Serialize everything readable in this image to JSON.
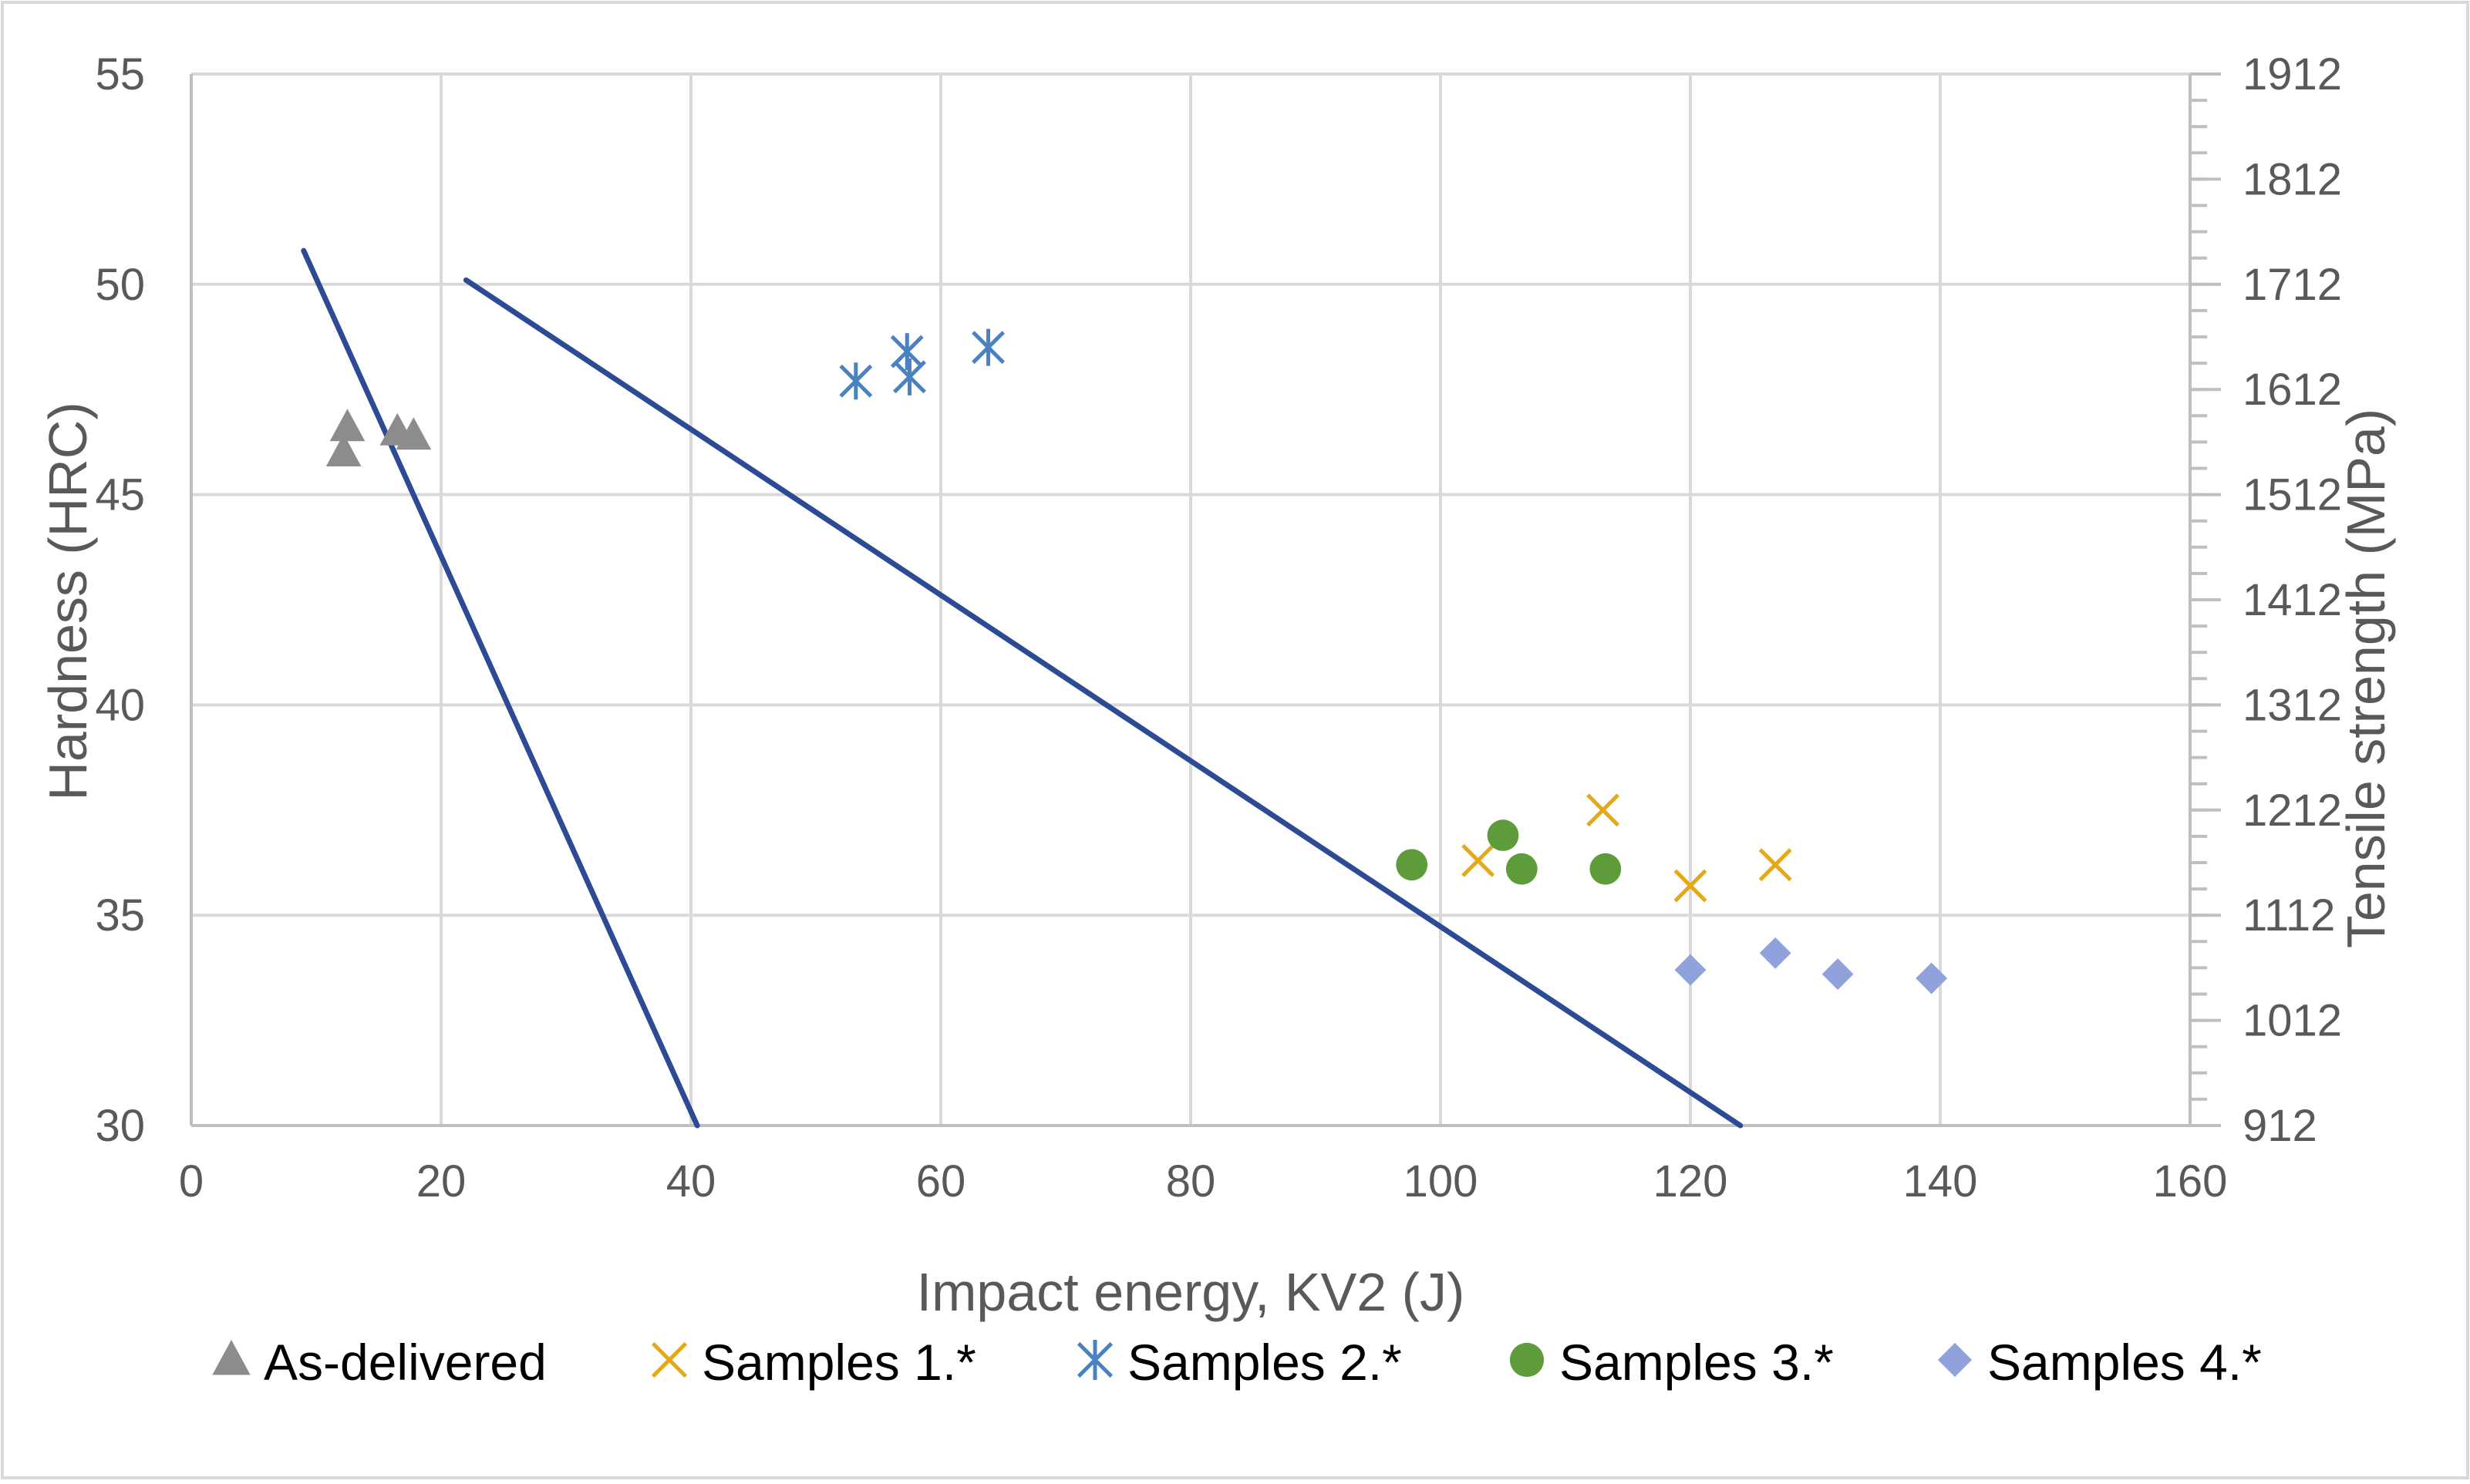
{
  "chart_data": {
    "type": "scatter",
    "title": "",
    "xlabel": "Impact energy, KV2 (J)",
    "ylabel": "Hardness (HRC)",
    "y2label": "Tensile strength (MPa)",
    "xlim": [
      0,
      160
    ],
    "ylim": [
      30,
      55
    ],
    "y2lim": [
      912,
      1912
    ],
    "x_ticks": [
      0,
      20,
      40,
      60,
      80,
      100,
      120,
      140,
      160
    ],
    "x_tick_labels": [
      "0",
      "20",
      "40",
      "60",
      "80",
      "100",
      "120",
      "140",
      "160"
    ],
    "y_ticks": [
      30,
      35,
      40,
      45,
      50,
      55
    ],
    "y_tick_labels": [
      "30",
      "35",
      "40",
      "45",
      "50",
      "55"
    ],
    "y2_ticks": [
      912,
      1012,
      1112,
      1212,
      1312,
      1412,
      1512,
      1612,
      1712,
      1812,
      1912
    ],
    "y2_tick_labels": [
      "912",
      "1012",
      "1112",
      "1212",
      "1312",
      "1412",
      "1512",
      "1612",
      "1712",
      "1812",
      "1912"
    ],
    "grid": true,
    "legend_position": "bottom",
    "series": [
      {
        "name": "As-delivered",
        "marker": "triangle",
        "color": "#8c8c8c",
        "points": [
          [
            12.2,
            46.0
          ],
          [
            12.5,
            46.6
          ],
          [
            16.5,
            46.5
          ],
          [
            17.8,
            46.4
          ]
        ]
      },
      {
        "name": "Samples 1.*",
        "marker": "x",
        "color": "#e6a817",
        "points": [
          [
            103.0,
            36.3
          ],
          [
            113.0,
            37.5
          ],
          [
            120.0,
            35.7
          ],
          [
            126.8,
            36.2
          ]
        ]
      },
      {
        "name": "Samples 2.*",
        "marker": "star",
        "color": "#4a82c0",
        "points": [
          [
            53.2,
            47.7
          ],
          [
            57.3,
            48.4
          ],
          [
            57.5,
            47.8
          ],
          [
            63.8,
            48.5
          ]
        ]
      },
      {
        "name": "Samples 3.*",
        "marker": "circle",
        "color": "#5e9b3a",
        "points": [
          [
            97.7,
            36.2
          ],
          [
            105.0,
            36.9
          ],
          [
            106.5,
            36.1
          ],
          [
            113.2,
            36.1
          ]
        ]
      },
      {
        "name": "Samples 4.*",
        "marker": "diamond",
        "color": "#8fa2dc",
        "points": [
          [
            120.0,
            33.7
          ],
          [
            126.8,
            34.1
          ],
          [
            131.8,
            33.6
          ],
          [
            139.3,
            33.5
          ]
        ]
      }
    ],
    "lines": [
      {
        "name": "boundary-line-1",
        "color": "#2d4b95",
        "points": [
          [
            9.0,
            50.8
          ],
          [
            40.5,
            30.0
          ]
        ]
      },
      {
        "name": "boundary-line-2",
        "color": "#2d4b95",
        "points": [
          [
            22.0,
            50.1
          ],
          [
            124.0,
            30.0
          ]
        ]
      }
    ]
  }
}
